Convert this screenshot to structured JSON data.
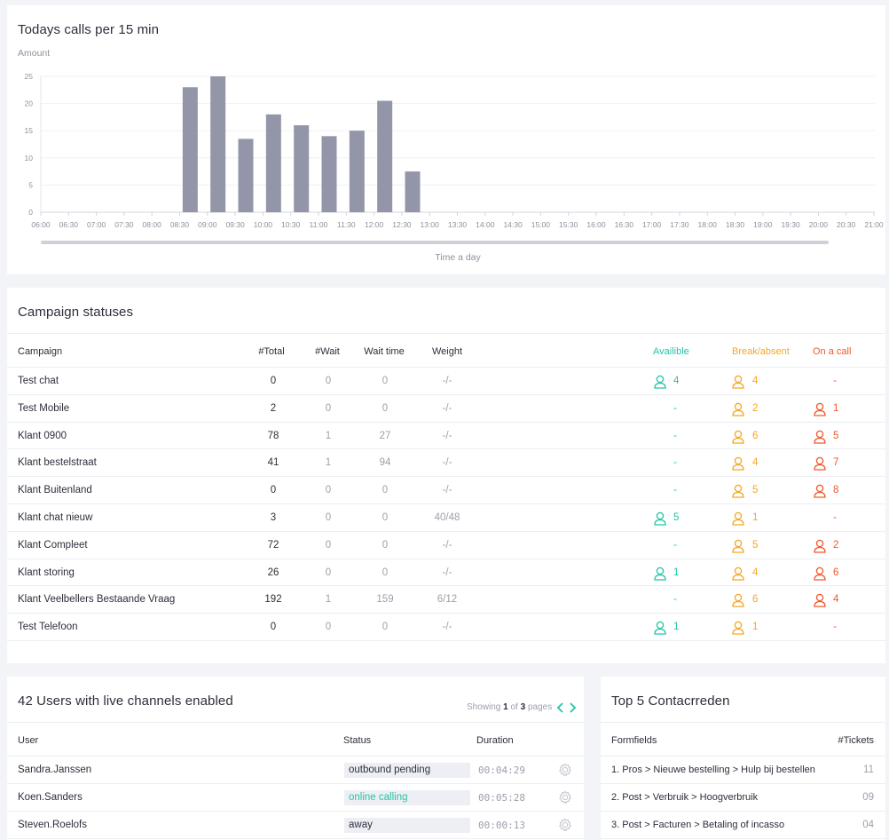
{
  "chart_card": {
    "title": "Todays calls per 15 min",
    "ylabel": "Amount",
    "xlabel": "Time a day"
  },
  "chart_data": {
    "type": "bar",
    "title": "Todays calls per 15 min",
    "ylabel": "Amount",
    "xlabel": "Time a day",
    "ylim": [
      0,
      25
    ],
    "yticks": [
      0,
      5,
      10,
      15,
      20,
      25
    ],
    "categories": [
      "06:00",
      "06:30",
      "07:00",
      "07:30",
      "08:00",
      "08:30",
      "09:00",
      "09:30",
      "10:00",
      "10:30",
      "11:00",
      "11:30",
      "12:00",
      "12:30",
      "13:00",
      "13:30",
      "14:00",
      "14:30",
      "15:00",
      "15:30",
      "16:00",
      "16:30",
      "17:00",
      "17:30",
      "18:00",
      "18:30",
      "19:00",
      "19:30",
      "20:00",
      "20:30",
      "21:00"
    ],
    "values": [
      0,
      0,
      0,
      0,
      0,
      23,
      25,
      13.5,
      18,
      16,
      14,
      15,
      20.5,
      7.5,
      0,
      0,
      0,
      0,
      0,
      0,
      0,
      0,
      0,
      0,
      0,
      0,
      0,
      0,
      0,
      0,
      0
    ],
    "bar_color": "#9396a8",
    "grid": true
  },
  "campaigns": {
    "title": "Campaign statuses",
    "headers": {
      "campaign": "Campaign",
      "total": "#Total",
      "wait": "#Wait",
      "wait_time": "Wait time",
      "weight": "Weight",
      "available": "Availible",
      "break": "Break/absent",
      "on_call": "On a call"
    },
    "rows": [
      {
        "name": "Test chat",
        "total": "0",
        "wait": "0",
        "wait_time": "0",
        "weight": "-/-",
        "available": "4",
        "break": "4",
        "on_call": "-"
      },
      {
        "name": "Test Mobile",
        "total": "2",
        "wait": "0",
        "wait_time": "0",
        "weight": "-/-",
        "available": "-",
        "break": "2",
        "on_call": "1"
      },
      {
        "name": "Klant 0900",
        "total": "78",
        "wait": "1",
        "wait_time": "27",
        "weight": "-/-",
        "available": "-",
        "break": "6",
        "on_call": "5"
      },
      {
        "name": "Klant bestelstraat",
        "total": "41",
        "wait": "1",
        "wait_time": "94",
        "weight": "-/-",
        "available": "-",
        "break": "4",
        "on_call": "7"
      },
      {
        "name": "Klant Buitenland",
        "total": "0",
        "wait": "0",
        "wait_time": "0",
        "weight": "-/-",
        "available": "-",
        "break": "5",
        "on_call": "8"
      },
      {
        "name": "Klant chat nieuw",
        "total": "3",
        "wait": "0",
        "wait_time": "0",
        "weight": "40/48",
        "available": "5",
        "break": "1",
        "on_call": "-"
      },
      {
        "name": "Klant Compleet",
        "total": "72",
        "wait": "0",
        "wait_time": "0",
        "weight": "-/-",
        "available": "-",
        "break": "5",
        "on_call": "2"
      },
      {
        "name": "Klant storing",
        "total": "26",
        "wait": "0",
        "wait_time": "0",
        "weight": "-/-",
        "available": "1",
        "break": "4",
        "on_call": "6"
      },
      {
        "name": "Klant Veelbellers Bestaande Vraag",
        "total": "192",
        "wait": "1",
        "wait_time": "159",
        "weight": "6/12",
        "available": "-",
        "break": "6",
        "on_call": "4"
      },
      {
        "name": "Test Telefoon",
        "total": "0",
        "wait": "0",
        "wait_time": "0",
        "weight": "-/-",
        "available": "1",
        "break": "1",
        "on_call": "-"
      }
    ]
  },
  "users": {
    "title": "42 Users with live channels enabled",
    "pagination": {
      "showing": "Showing",
      "current": "1",
      "of": "of",
      "total": "3",
      "pages": "pages"
    },
    "headers": {
      "user": "User",
      "status": "Status",
      "duration": "Duration"
    },
    "rows": [
      {
        "user": "Sandra.Janssen",
        "status": "outbound pending",
        "duration": "00:04:29",
        "status_color": "#2c2f3a"
      },
      {
        "user": "Koen.Sanders",
        "status": "online calling",
        "duration": "00:05:28",
        "status_color": "#22c5a5"
      },
      {
        "user": "Steven.Roelofs",
        "status": "away",
        "duration": "00:00:13",
        "status_color": "#2c2f3a"
      }
    ]
  },
  "top5": {
    "title": "Top 5 Contacrreden",
    "headers": {
      "formfields": "Formfields",
      "tickets": "#Tickets"
    },
    "rows": [
      {
        "label": "1. Pros > Nieuwe bestelling > Hulp bij bestellen",
        "count": "11"
      },
      {
        "label": "2. Post > Verbruik > Hoogverbruik",
        "count": "09"
      },
      {
        "label": "3. Post > Facturen > Betaling of incasso",
        "count": "04"
      }
    ]
  },
  "colors": {
    "available": "#22c5a5",
    "break": "#f5a623",
    "on_call": "#f0572b",
    "accent": "#22c5a5"
  }
}
